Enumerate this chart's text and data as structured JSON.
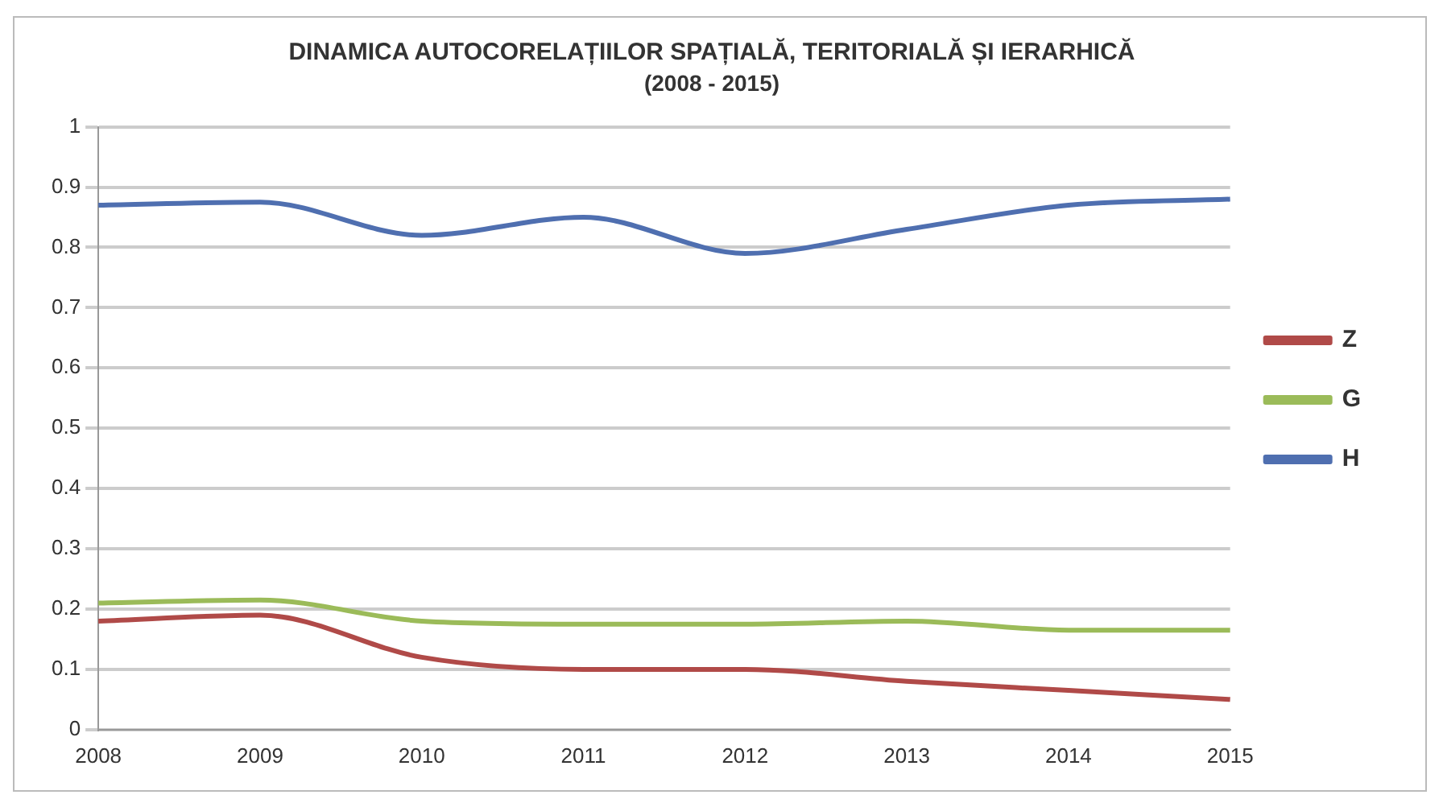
{
  "chart_data": {
    "type": "line",
    "title": "DINAMICA AUTOCORELAȚIILOR SPAȚIALĂ, TERITORIALĂ ȘI IERARHICĂ",
    "subtitle": "(2008 - 2015)",
    "categories": [
      "2008",
      "2009",
      "2010",
      "2011",
      "2012",
      "2013",
      "2014",
      "2015"
    ],
    "series": [
      {
        "name": "Z",
        "color": "#b04a48",
        "values": [
          0.18,
          0.19,
          0.12,
          0.1,
          0.1,
          0.08,
          0.065,
          0.05
        ]
      },
      {
        "name": "G",
        "color": "#9bbb59",
        "values": [
          0.21,
          0.215,
          0.18,
          0.175,
          0.175,
          0.18,
          0.165,
          0.165
        ]
      },
      {
        "name": "H",
        "color": "#4f6fb0",
        "values": [
          0.87,
          0.875,
          0.82,
          0.85,
          0.79,
          0.83,
          0.87,
          0.88
        ]
      }
    ],
    "ylim": [
      0,
      1
    ],
    "yticks": [
      0,
      0.1,
      0.2,
      0.3,
      0.4,
      0.5,
      0.6,
      0.7,
      0.8,
      0.9,
      1
    ],
    "grid": "y",
    "legend": "right",
    "marker": "none",
    "line_style": "solid"
  }
}
